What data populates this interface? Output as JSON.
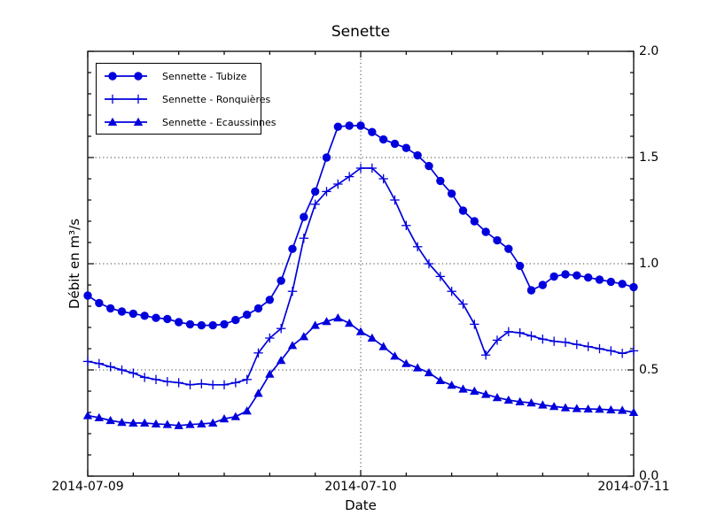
{
  "chart_data": {
    "type": "line",
    "title": "Senette",
    "xlabel": "Date",
    "ylabel": "Débit en m³/s",
    "line_color": "#0000dd",
    "background_color": "#ffffff",
    "xlim_hours": [
      0,
      48
    ],
    "ylim": [
      0,
      2
    ],
    "x_ticks": {
      "major_labels": [
        "2014-07-09",
        "2014-07-10",
        "2014-07-11"
      ],
      "major_hours": [
        0,
        24,
        48
      ],
      "minor_step_hours": 4
    },
    "y_ticks": {
      "labels": [
        "2.0",
        "1.5",
        "1.0",
        "0.5",
        "0.0"
      ],
      "values": [
        2.0,
        1.5,
        1.0,
        0.5,
        0.0
      ],
      "minor_step": 0.1,
      "label_side": "right"
    },
    "gridlines": {
      "style": "dotted",
      "y_values": [
        0.5,
        1.0,
        1.5
      ],
      "x_hours": [
        24
      ]
    },
    "legend": {
      "position": "upper-left"
    },
    "x_sampling": "hourly points, t = hours since 2014-07-09 00:00",
    "series": [
      {
        "id": "tubize",
        "name": "Sennette - Tubize",
        "marker": "circle",
        "values": [
          0.85,
          0.815,
          0.79,
          0.775,
          0.765,
          0.755,
          0.745,
          0.74,
          0.725,
          0.715,
          0.71,
          0.71,
          0.715,
          0.735,
          0.76,
          0.79,
          0.83,
          0.92,
          1.07,
          1.22,
          1.34,
          1.5,
          1.645,
          1.65,
          1.65,
          1.62,
          1.585,
          1.565,
          1.545,
          1.51,
          1.46,
          1.39,
          1.33,
          1.25,
          1.2,
          1.15,
          1.11,
          1.07,
          0.99,
          0.875,
          0.9,
          0.94,
          0.95,
          0.945,
          0.935,
          0.925,
          0.915,
          0.905,
          0.89
        ]
      },
      {
        "id": "ronquieres",
        "name": "Sennette - Ronquières",
        "marker": "plus",
        "values": [
          0.54,
          0.53,
          0.515,
          0.5,
          0.485,
          0.465,
          0.455,
          0.445,
          0.44,
          0.43,
          0.435,
          0.43,
          0.43,
          0.44,
          0.455,
          0.58,
          0.65,
          0.695,
          0.87,
          1.12,
          1.28,
          1.34,
          1.375,
          1.41,
          1.45,
          1.45,
          1.4,
          1.3,
          1.18,
          1.08,
          1.0,
          0.94,
          0.87,
          0.81,
          0.715,
          0.57,
          0.64,
          0.68,
          0.675,
          0.66,
          0.645,
          0.635,
          0.63,
          0.62,
          0.61,
          0.6,
          0.59,
          0.578,
          0.59
        ]
      },
      {
        "id": "ecaussinnes",
        "name": "Sennette - Ecaussinnes",
        "marker": "triangle-up",
        "values": [
          0.285,
          0.275,
          0.262,
          0.253,
          0.25,
          0.25,
          0.246,
          0.243,
          0.238,
          0.243,
          0.246,
          0.25,
          0.27,
          0.28,
          0.307,
          0.39,
          0.48,
          0.545,
          0.615,
          0.657,
          0.71,
          0.728,
          0.745,
          0.72,
          0.68,
          0.65,
          0.61,
          0.565,
          0.53,
          0.51,
          0.487,
          0.45,
          0.428,
          0.41,
          0.4,
          0.385,
          0.37,
          0.358,
          0.35,
          0.345,
          0.335,
          0.328,
          0.322,
          0.318,
          0.316,
          0.315,
          0.312,
          0.31,
          0.3
        ]
      }
    ]
  }
}
